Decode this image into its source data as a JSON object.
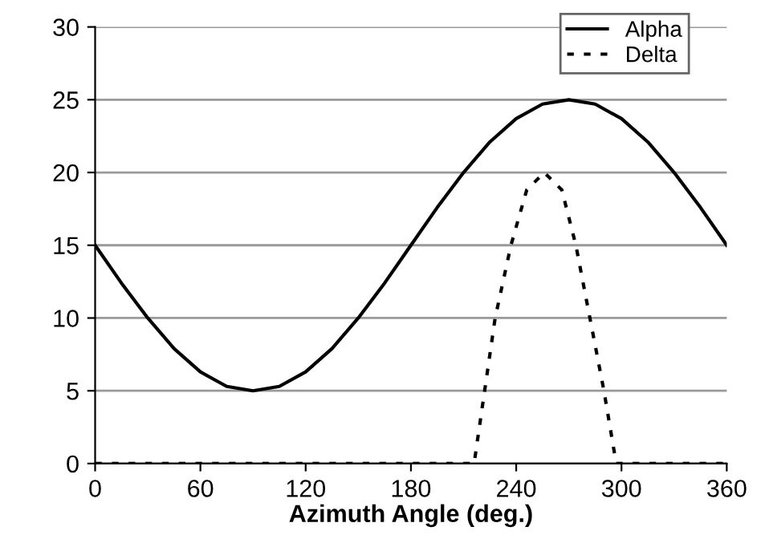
{
  "chart_data": {
    "type": "line",
    "xlabel": "Azimuth Angle (deg.)",
    "series": [
      {
        "name": "Alpha",
        "color": "#000000",
        "line_style": "solid",
        "x": [
          0,
          15,
          30,
          45,
          60,
          75,
          90,
          105,
          120,
          135,
          150,
          165,
          180,
          195,
          210,
          225,
          240,
          255,
          270,
          285,
          300,
          315,
          330,
          345,
          360
        ],
        "values": [
          15,
          12.4,
          10,
          7.9,
          6.3,
          5.3,
          5,
          5.3,
          6.3,
          7.9,
          10,
          12.4,
          15,
          17.6,
          20,
          22.1,
          23.7,
          24.7,
          25,
          24.7,
          23.7,
          22.1,
          20,
          17.6,
          15
        ]
      },
      {
        "name": "Delta",
        "color": "#000000",
        "line_style": "dotted",
        "x": [
          0,
          60,
          120,
          180,
          216,
          222,
          228,
          237,
          246,
          256,
          266,
          274,
          282,
          290,
          297,
          300,
          360
        ],
        "values": [
          0,
          0,
          0,
          0,
          0,
          5,
          10,
          15,
          18.8,
          20,
          18.8,
          15,
          10,
          5,
          0,
          0,
          0
        ]
      }
    ],
    "xlim": [
      0,
      360
    ],
    "xticks": [
      0,
      60,
      120,
      180,
      240,
      300,
      360
    ],
    "ylim": [
      0,
      30
    ],
    "yticks": [
      0,
      5,
      10,
      15,
      20,
      25,
      30
    ],
    "grid": "y",
    "legend": "top right"
  }
}
